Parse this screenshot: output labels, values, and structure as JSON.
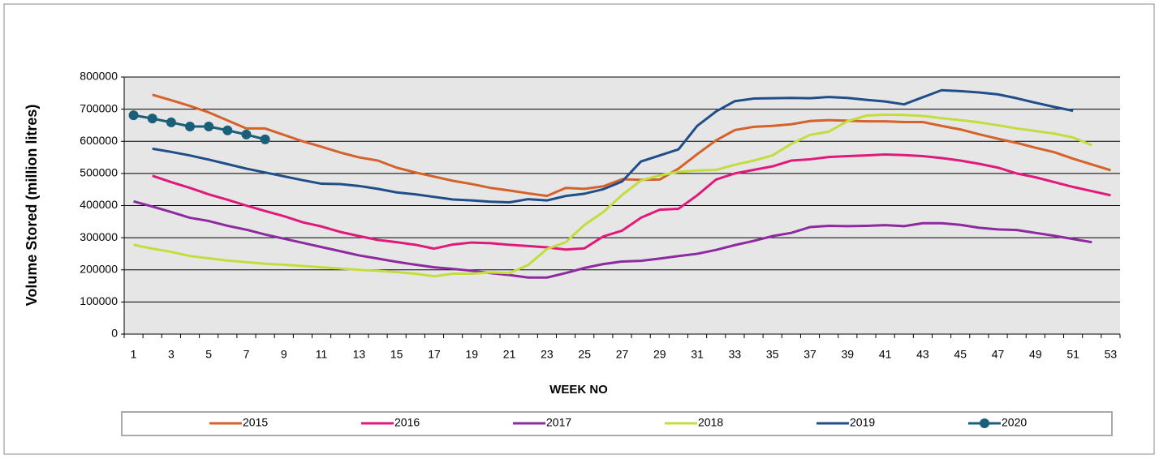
{
  "chart_data": {
    "type": "line",
    "y_label": "Volume Stored (million litres)",
    "x_label": "WEEK NO",
    "categories": [
      1,
      null,
      3,
      null,
      5,
      null,
      7,
      null,
      9,
      null,
      11,
      null,
      13,
      null,
      15,
      null,
      17,
      null,
      19,
      null,
      21,
      null,
      23,
      null,
      25,
      null,
      27,
      null,
      29,
      null,
      31,
      null,
      33,
      null,
      35,
      null,
      37,
      null,
      39,
      null,
      41,
      null,
      43,
      null,
      45,
      null,
      47,
      null,
      49,
      null,
      51,
      null,
      53
    ],
    "ylim": [
      0,
      800000
    ],
    "yticks": [
      0,
      100000,
      200000,
      300000,
      400000,
      500000,
      600000,
      700000,
      800000
    ],
    "grid": true,
    "legend": "bottom",
    "series": [
      {
        "name": "2015",
        "color": "#d4622a",
        "values": [
          null,
          745000,
          728000,
          710000,
          690000,
          665000,
          640000,
          640000,
          620000,
          600000,
          583000,
          565000,
          550000,
          540000,
          518000,
          503000,
          490000,
          477000,
          467000,
          455000,
          447000,
          438000,
          430000,
          455000,
          452000,
          460000,
          482000,
          480000,
          481000,
          515000,
          560000,
          603000,
          635000,
          645000,
          648000,
          653000,
          663000,
          666000,
          664000,
          662000,
          662000,
          660000,
          660000,
          648000,
          637000,
          622000,
          608000,
          595000,
          580000,
          566000,
          546000,
          528000,
          510000
        ]
      },
      {
        "name": "2016",
        "color": "#e0197a",
        "values": [
          null,
          493000,
          473000,
          455000,
          435000,
          418000,
          400000,
          383000,
          367000,
          348000,
          335000,
          318000,
          305000,
          293000,
          286000,
          278000,
          266000,
          279000,
          285000,
          283000,
          278000,
          274000,
          270000,
          263000,
          267000,
          304000,
          322000,
          362000,
          387000,
          390000,
          432000,
          481000,
          500000,
          511000,
          522000,
          540000,
          544000,
          551000,
          554000,
          556000,
          559000,
          557000,
          554000,
          548000,
          540000,
          530000,
          518000,
          500000,
          488000,
          473000,
          458000,
          445000,
          432000
        ]
      },
      {
        "name": "2017",
        "color": "#8e2aa0",
        "values": [
          413000,
          397000,
          380000,
          362000,
          352000,
          337000,
          325000,
          310000,
          297000,
          284000,
          271000,
          258000,
          245000,
          235000,
          225000,
          216000,
          208000,
          203000,
          197000,
          190000,
          184000,
          176000,
          176000,
          190000,
          206000,
          218000,
          226000,
          228000,
          235000,
          243000,
          250000,
          262000,
          277000,
          290000,
          305000,
          315000,
          333000,
          337000,
          336000,
          337000,
          339000,
          336000,
          345000,
          345000,
          340000,
          331000,
          326000,
          324000,
          315000,
          306000,
          296000,
          286000,
          null
        ]
      },
      {
        "name": "2018",
        "color": "#c4dc3c",
        "values": [
          278000,
          266000,
          256000,
          243000,
          236000,
          229000,
          224000,
          219000,
          216000,
          212000,
          208000,
          204000,
          200000,
          197000,
          193000,
          188000,
          180000,
          188000,
          188000,
          192000,
          190000,
          215000,
          265000,
          286000,
          340000,
          380000,
          433000,
          478000,
          494000,
          505000,
          509000,
          511000,
          527000,
          540000,
          556000,
          592000,
          620000,
          630000,
          663000,
          680000,
          683000,
          682000,
          679000,
          672000,
          666000,
          659000,
          650000,
          640000,
          632000,
          624000,
          612000,
          588000,
          null
        ]
      },
      {
        "name": "2019",
        "color": "#1f4e89",
        "values": [
          null,
          577000,
          567000,
          556000,
          543000,
          529000,
          515000,
          503000,
          491000,
          479000,
          468000,
          467000,
          461000,
          452000,
          441000,
          435000,
          427000,
          419000,
          416000,
          412000,
          410000,
          420000,
          416000,
          430000,
          437000,
          451000,
          475000,
          537000,
          556000,
          575000,
          648000,
          693000,
          725000,
          733000,
          734000,
          735000,
          734000,
          738000,
          735000,
          729000,
          724000,
          715000,
          737000,
          759000,
          756000,
          752000,
          746000,
          734000,
          720000,
          707000,
          695000,
          null,
          null
        ]
      },
      {
        "name": "2020",
        "color": "#1a5f7a",
        "marker": "circle",
        "values": [
          681000,
          671000,
          659000,
          646000,
          646000,
          634000,
          621000,
          606000,
          null,
          null,
          null,
          null,
          null,
          null,
          null,
          null,
          null,
          null,
          null,
          null,
          null,
          null,
          null,
          null,
          null,
          null,
          null,
          null,
          null,
          null,
          null,
          null,
          null,
          null,
          null,
          null,
          null,
          null,
          null,
          null,
          null,
          null,
          null,
          null,
          null,
          null,
          null,
          null,
          null,
          null,
          null,
          null,
          null
        ]
      }
    ]
  }
}
